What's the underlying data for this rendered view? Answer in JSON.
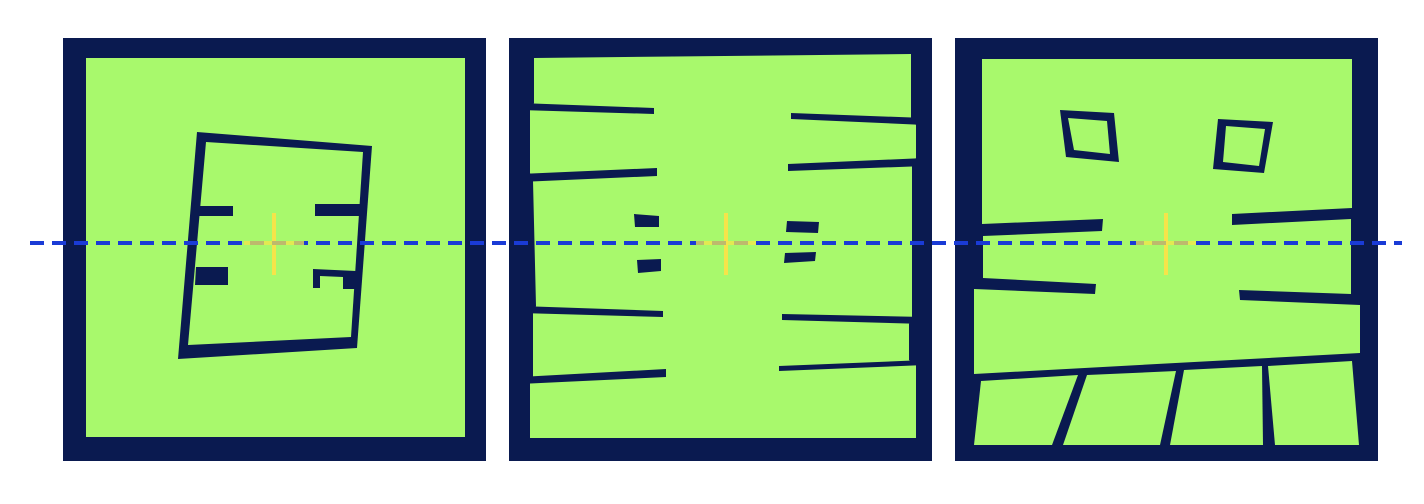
{
  "panels": [
    {
      "id": "panel-1"
    },
    {
      "id": "panel-2"
    },
    {
      "id": "panel-3"
    }
  ],
  "colors": {
    "wall": "#0a1a50",
    "free_space": "#a8f96c",
    "center_marker": "#f5e44a",
    "reference_line": "#1a3bd6",
    "background": "#ffffff"
  }
}
